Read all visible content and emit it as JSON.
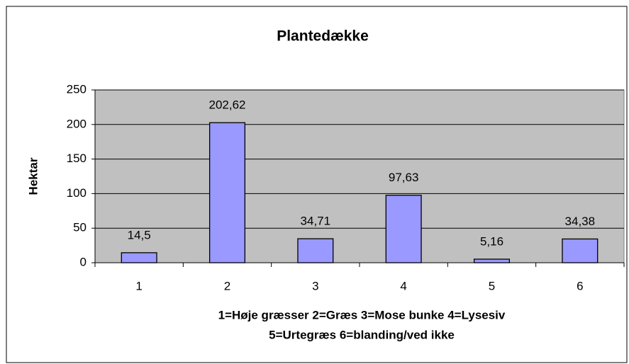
{
  "chart_data": {
    "type": "bar",
    "title": "Plantedække",
    "categories": [
      "1",
      "2",
      "3",
      "4",
      "5",
      "6"
    ],
    "values": [
      14.5,
      202.62,
      34.71,
      97.63,
      5.16,
      34.38
    ],
    "value_labels": [
      "14,5",
      "202,62",
      "34,71",
      "97,63",
      "5,16",
      "34,38"
    ],
    "color": "#9999ff",
    "ylabel": "Hektar",
    "xlabel": [
      "1=Høje græsser 2=Græs 3=Mose bunke 4=Lysesiv",
      "5=Urtegræs 6=blanding/ved ikke"
    ],
    "ylim": [
      0,
      250
    ],
    "yticks": [
      0,
      50,
      100,
      150,
      200,
      250
    ],
    "grid": true
  }
}
